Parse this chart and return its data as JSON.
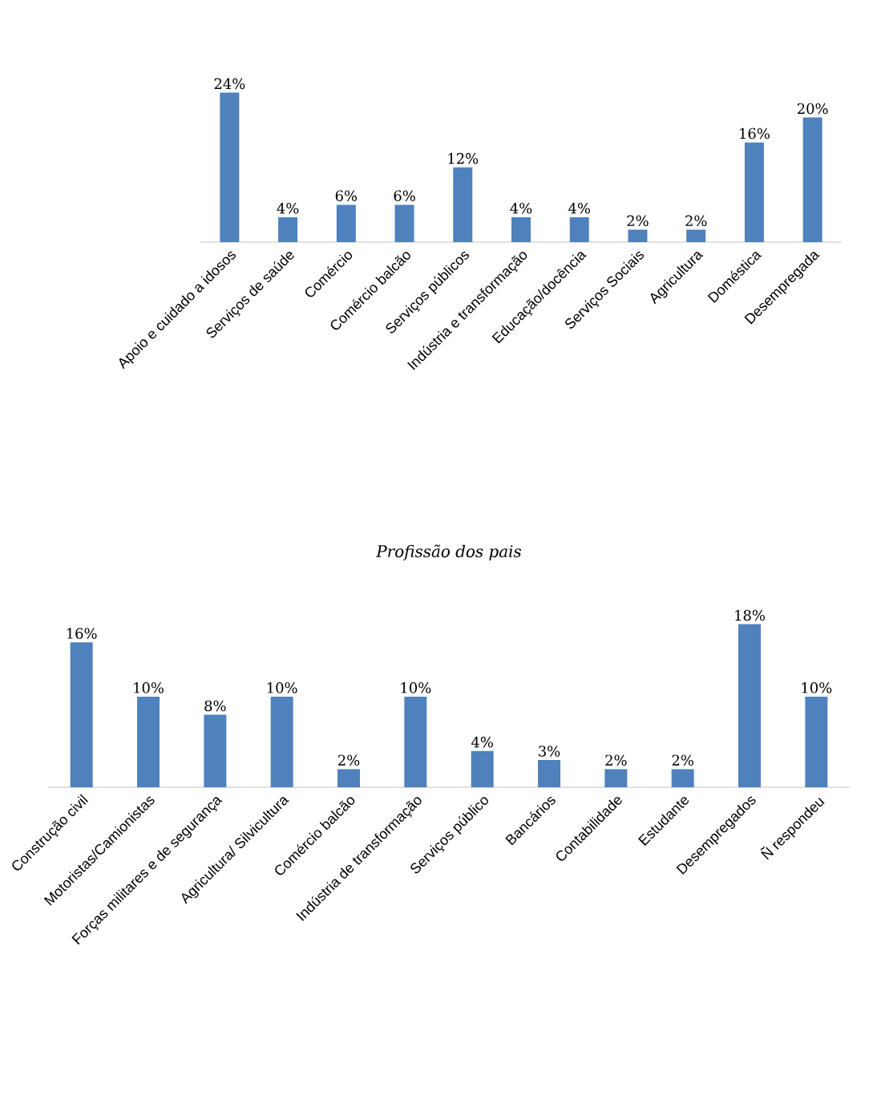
{
  "chart_data": [
    {
      "type": "bar",
      "color": "#4f81bd",
      "categories": [
        "Apoio e cuidado a idosos",
        "Serviços de saúde",
        "Comércio",
        "Comércio balcão",
        "Serviços públicos",
        "Indústria e transformação",
        "Educação/docência",
        "Serviços Sociais",
        "Agricultura",
        "Doméstica",
        "Desempregada"
      ],
      "values": [
        24,
        4,
        6,
        6,
        12,
        4,
        4,
        2,
        2,
        16,
        20
      ],
      "value_labels": [
        "24%",
        "4%",
        "6%",
        "6%",
        "12%",
        "4%",
        "4%",
        "2%",
        "2%",
        "16%",
        "20%"
      ]
    },
    {
      "type": "bar",
      "color": "#4f81bd",
      "title": "*Profissão dos pais*",
      "categories": [
        "Construção civil",
        "Motoristas/Camionistas",
        "Forças militares e de segurança",
        "Agricultura/ Silvicultura",
        "Comércio balcão",
        "Indústria de transformação",
        "Serviços público",
        "Bancários",
        "Contabilidade",
        "Estudante",
        "Desempregados",
        "Ñ respondeu"
      ],
      "values": [
        16,
        10,
        8,
        10,
        2,
        10,
        4,
        3,
        2,
        2,
        18,
        10
      ],
      "value_labels": [
        "16%",
        "10%",
        "8%",
        "10%",
        "2%",
        "10%",
        "4%",
        "3%",
        "2%",
        "2%",
        "18%",
        "10%"
      ]
    }
  ]
}
